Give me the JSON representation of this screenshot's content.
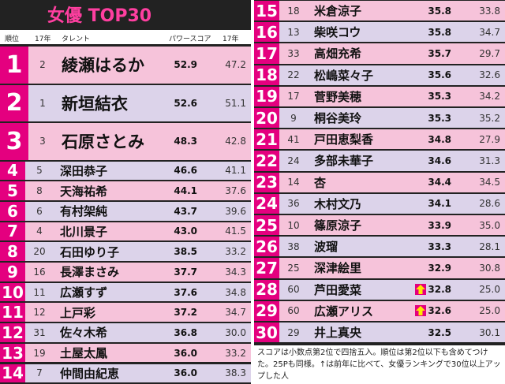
{
  "header": {
    "title": "女優 TOP30",
    "columns": [
      "順位",
      "17年",
      "タレント",
      "パワースコア",
      "17年"
    ]
  },
  "table": {
    "rows": [
      [
        "1",
        "2",
        "綾瀬はるか",
        "52.9",
        "47.2"
      ],
      [
        "2",
        "1",
        "新垣結衣",
        "52.6",
        "51.1"
      ],
      [
        "3",
        "3",
        "石原さとみ",
        "48.3",
        "42.8"
      ],
      [
        "4",
        "5",
        "深田恭子",
        "46.6",
        "41.1"
      ],
      [
        "5",
        "8",
        "天海祐希",
        "44.1",
        "37.6"
      ],
      [
        "6",
        "6",
        "有村架純",
        "43.7",
        "39.6"
      ],
      [
        "7",
        "4",
        "北川景子",
        "43.0",
        "41.5"
      ],
      [
        "8",
        "20",
        "石田ゆり子",
        "38.5",
        "33.2"
      ],
      [
        "9",
        "16",
        "長澤まさみ",
        "37.7",
        "34.3"
      ],
      [
        "10",
        "11",
        "広瀬すず",
        "37.6",
        "34.8"
      ],
      [
        "11",
        "12",
        "上戸彩",
        "37.2",
        "34.7"
      ],
      [
        "12",
        "31",
        "佐々木希",
        "36.8",
        "30.0"
      ],
      [
        "13",
        "19",
        "土屋太鳳",
        "36.0",
        "33.2"
      ],
      [
        "14",
        "7",
        "仲間由紀恵",
        "36.0",
        "38.3"
      ],
      [
        "15",
        "18",
        "米倉涼子",
        "35.8",
        "33.8"
      ],
      [
        "16",
        "13",
        "柴咲コウ",
        "35.8",
        "34.7"
      ],
      [
        "17",
        "33",
        "高畑充希",
        "35.7",
        "29.7"
      ],
      [
        "18",
        "22",
        "松嶋菜々子",
        "35.6",
        "32.6"
      ],
      [
        "19",
        "17",
        "菅野美穂",
        "35.3",
        "34.2"
      ],
      [
        "20",
        "9",
        "桐谷美玲",
        "35.3",
        "35.2"
      ],
      [
        "21",
        "41",
        "戸田恵梨香",
        "34.8",
        "27.9"
      ],
      [
        "22",
        "24",
        "多部未華子",
        "34.6",
        "31.3"
      ],
      [
        "23",
        "14",
        "杏",
        "34.4",
        "34.5"
      ],
      [
        "24",
        "36",
        "木村文乃",
        "34.1",
        "28.6"
      ],
      [
        "25",
        "10",
        "篠原涼子",
        "33.9",
        "35.0"
      ],
      [
        "26",
        "38",
        "波瑠",
        "33.3",
        "28.1"
      ],
      [
        "27",
        "25",
        "深津絵里",
        "32.9",
        "30.8"
      ],
      [
        "28",
        "60",
        "芦田愛菜",
        "32.8",
        "25.0"
      ],
      [
        "29",
        "60",
        "広瀬アリス",
        "32.6",
        "25.0"
      ],
      [
        "30",
        "29",
        "井上真央",
        "32.5",
        "30.1"
      ]
    ],
    "rising": [
      28,
      29
    ]
  },
  "footnote": "スコアは小数点第2位で四捨五入。順位は第2位以下も含めてつけた。25Pも同様。↑は前年に比べて、女優ランキングで30位以上アップした人"
}
